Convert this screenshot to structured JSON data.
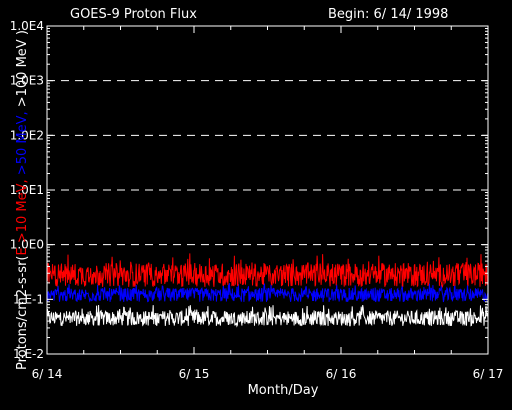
{
  "chart_data": {
    "type": "line",
    "title": "GOES-9 Proton Flux",
    "subtitle": "Begin: 6/ 14/ 1998",
    "xlabel": "Month/Day",
    "ylabel_parts": [
      {
        "text": "Protons/cm2-s-sr(",
        "color": "#ffffff"
      },
      {
        "text": "E >10 MeV, ",
        "color": "#ff0000"
      },
      {
        "text": ">50 MeV, ",
        "color": "#0000ff"
      },
      {
        "text": ">100 MeV )",
        "color": "#ffffff"
      }
    ],
    "y_scale": "log",
    "ylim": [
      0.01,
      10000
    ],
    "ytick_values": [
      0.01,
      0.1,
      1,
      10,
      100,
      1000,
      10000
    ],
    "ytick_labels": [
      "1.E-2",
      "1.E-1",
      "1.0E0",
      "1.0E1",
      "1.0E2",
      "1.0E3",
      "1.0E4"
    ],
    "gridline_values": [
      1,
      10,
      100,
      1000
    ],
    "x_unit": "days since 6/14",
    "xlim": [
      0,
      3
    ],
    "xtick_values": [
      0,
      1,
      2,
      3
    ],
    "xtick_labels": [
      "6/ 14",
      "6/ 15",
      "6/ 16",
      "6/ 17"
    ],
    "series": [
      {
        "name": ">10 MeV",
        "color": "#ff0000",
        "typical": 0.28,
        "range": [
          0.15,
          0.7
        ]
      },
      {
        "name": ">50 MeV",
        "color": "#0000ff",
        "typical": 0.12,
        "range": [
          0.07,
          0.2
        ]
      },
      {
        "name": ">100 MeV",
        "color": "#ffffff",
        "typical": 0.045,
        "range": [
          0.025,
          0.08
        ]
      }
    ]
  }
}
